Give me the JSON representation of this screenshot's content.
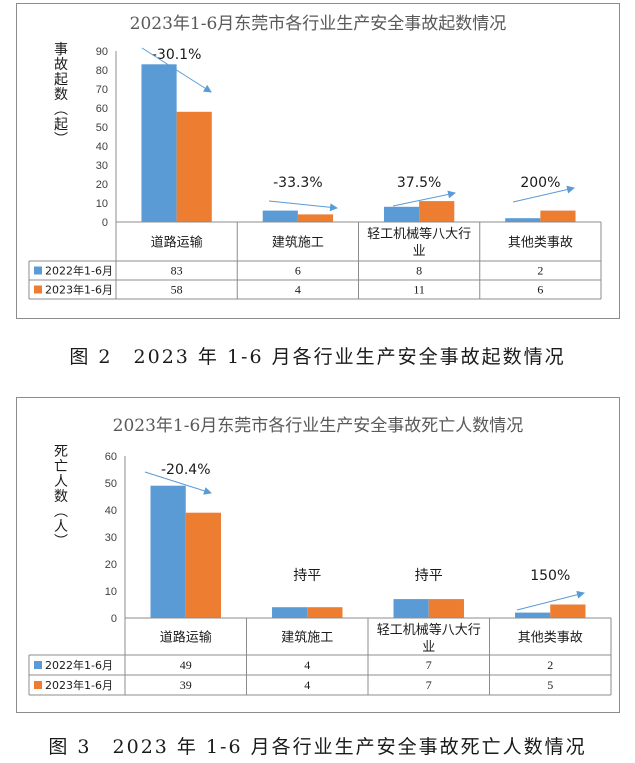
{
  "colors": {
    "series_2022": "#5b9bd5",
    "series_2023": "#ed7d31",
    "arrow": "#5b9bd5"
  },
  "chart_data": [
    {
      "type": "bar",
      "title": "2023年1-6月东莞市各行业生产安全事故起数情况",
      "ylabel": "事故起数（起）",
      "ylim": [
        0,
        90
      ],
      "yticks": [
        0,
        10,
        20,
        30,
        40,
        50,
        60,
        70,
        80,
        90
      ],
      "categories": [
        "道路运输",
        "建筑施工",
        "轻工机械等八大行业",
        "其他类事故"
      ],
      "series": [
        {
          "name": "2022年1-6月",
          "values": [
            83,
            6,
            8,
            2
          ]
        },
        {
          "name": "2023年1-6月",
          "values": [
            58,
            4,
            11,
            6
          ]
        }
      ],
      "annotations": [
        "-30.1%",
        "-33.3%",
        "37.5%",
        "200%"
      ],
      "grid": false,
      "legend": "data-table"
    },
    {
      "type": "bar",
      "title": "2023年1-6月东莞市各行业生产安全事故死亡人数情况",
      "ylabel": "死亡人数（人）",
      "ylim": [
        0,
        60
      ],
      "yticks": [
        0,
        10,
        20,
        30,
        40,
        50,
        60
      ],
      "categories": [
        "道路运输",
        "建筑施工",
        "轻工机械等八大行业",
        "其他类事故"
      ],
      "series": [
        {
          "name": "2022年1-6月",
          "values": [
            49,
            4,
            7,
            2
          ]
        },
        {
          "name": "2023年1-6月",
          "values": [
            39,
            4,
            7,
            5
          ]
        }
      ],
      "annotations": [
        "-20.4%",
        "持平",
        "持平",
        "150%"
      ],
      "grid": false,
      "legend": "data-table"
    }
  ],
  "captions": [
    "图 2　2023 年 1-6 月各行业生产安全事故起数情况",
    "图 3　2023 年 1-6 月各行业生产安全事故死亡人数情况"
  ]
}
